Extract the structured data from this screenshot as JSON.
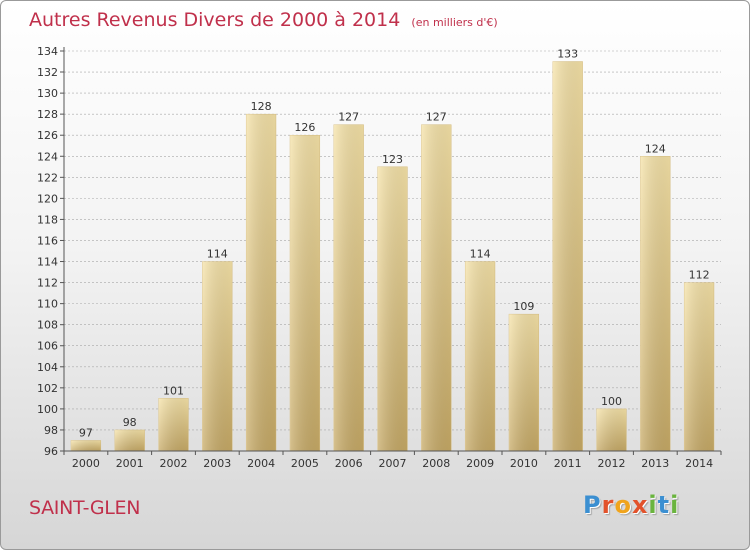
{
  "header": {
    "title": "Autres Revenus Divers de 2000 à 2014",
    "unit": "(en milliers d'€)"
  },
  "footer": {
    "city": "SAINT-GLEN",
    "logo_letters": [
      "P",
      "r",
      "o",
      "x",
      "i",
      "t",
      "i"
    ]
  },
  "colors": {
    "title": "#c0304b",
    "bar_light": "#f4dc9a",
    "bar_dark": "#c9ad6a",
    "grid": "#9a9a9a"
  },
  "chart_data": {
    "type": "bar",
    "categories": [
      "2000",
      "2001",
      "2002",
      "2003",
      "2004",
      "2005",
      "2006",
      "2007",
      "2008",
      "2009",
      "2010",
      "2011",
      "2012",
      "2013",
      "2014"
    ],
    "values": [
      97,
      98,
      101,
      114,
      128,
      126,
      127,
      123,
      127,
      114,
      109,
      133,
      100,
      124,
      112
    ],
    "data_labels": [
      "97",
      "98",
      "101",
      "114",
      "128",
      "126",
      "127",
      "123",
      "127",
      "114",
      "109",
      "133",
      "100",
      "124",
      "112"
    ],
    "yticks": [
      96,
      98,
      100,
      102,
      104,
      106,
      108,
      110,
      112,
      114,
      116,
      118,
      120,
      122,
      124,
      126,
      128,
      130,
      132,
      134
    ],
    "ylim": [
      96,
      134
    ],
    "title": "Autres Revenus Divers de 2000 à 2014",
    "xlabel": "",
    "ylabel": "",
    "grid": true
  }
}
